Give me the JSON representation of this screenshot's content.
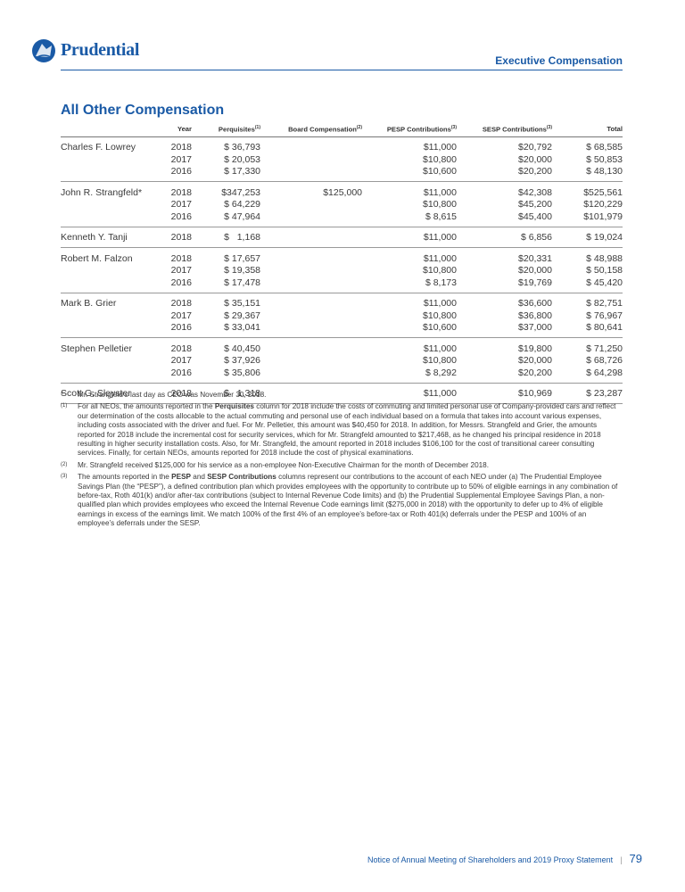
{
  "header": {
    "logo": "Prudential",
    "section": "Executive Compensation"
  },
  "title": "All Other Compensation",
  "table": {
    "columns": [
      {
        "label": "Year"
      },
      {
        "label": "Perquisites",
        "note": "(1)"
      },
      {
        "label": "Board Compensation",
        "note": "(2)"
      },
      {
        "label": "PESP Contributions",
        "note": "(3)"
      },
      {
        "label": "SESP Contributions",
        "note": "(3)"
      },
      {
        "label": "Total"
      }
    ],
    "groups": [
      {
        "name": "Charles F. Lowrey",
        "rows": [
          [
            "2018",
            "$ 36,793",
            null,
            "$11,000",
            "$20,792",
            "$ 68,585"
          ],
          [
            "2017",
            "$ 20,053",
            null,
            "$10,800",
            "$20,000",
            "$ 50,853"
          ],
          [
            "2016",
            "$ 17,330",
            null,
            "$10,600",
            "$20,200",
            "$ 48,130"
          ]
        ]
      },
      {
        "name": "John R. Strangfeld*",
        "rows": [
          [
            "2018",
            "$347,253",
            "$125,000",
            "$11,000",
            "$42,308",
            "$525,561"
          ],
          [
            "2017",
            "$ 64,229",
            null,
            "$10,800",
            "$45,200",
            "$120,229"
          ],
          [
            "2016",
            "$ 47,964",
            null,
            "$ 8,615",
            "$45,400",
            "$101,979"
          ]
        ]
      },
      {
        "name": "Kenneth Y. Tanji",
        "rows": [
          [
            "2018",
            "$   1,168",
            null,
            "$11,000",
            "$ 6,856",
            "$ 19,024"
          ]
        ]
      },
      {
        "name": "Robert M. Falzon",
        "rows": [
          [
            "2018",
            "$ 17,657",
            null,
            "$11,000",
            "$20,331",
            "$ 48,988"
          ],
          [
            "2017",
            "$ 19,358",
            null,
            "$10,800",
            "$20,000",
            "$ 50,158"
          ],
          [
            "2016",
            "$ 17,478",
            null,
            "$ 8,173",
            "$19,769",
            "$ 45,420"
          ]
        ]
      },
      {
        "name": "Mark B. Grier",
        "rows": [
          [
            "2018",
            "$ 35,151",
            null,
            "$11,000",
            "$36,600",
            "$ 82,751"
          ],
          [
            "2017",
            "$ 29,367",
            null,
            "$10,800",
            "$36,800",
            "$ 76,967"
          ],
          [
            "2016",
            "$ 33,041",
            null,
            "$10,600",
            "$37,000",
            "$ 80,641"
          ]
        ]
      },
      {
        "name": "Stephen Pelletier",
        "rows": [
          [
            "2018",
            "$ 40,450",
            null,
            "$11,000",
            "$19,800",
            "$ 71,250"
          ],
          [
            "2017",
            "$ 37,926",
            null,
            "$10,800",
            "$20,000",
            "$ 68,726"
          ],
          [
            "2016",
            "$ 35,806",
            null,
            "$ 8,292",
            "$20,200",
            "$ 64,298"
          ]
        ]
      },
      {
        "name": "Scott G. Sleyster",
        "rows": [
          [
            "2018",
            "$   1,318",
            null,
            "$11,000",
            "$10,969",
            "$ 23,287"
          ]
        ]
      }
    ]
  },
  "footnotes": [
    {
      "mark": "*",
      "parts": [
        {
          "text": "Mr. Strangfeld’s last day as CEO was November 30, 2018."
        }
      ]
    },
    {
      "mark": "(1)",
      "parts": [
        {
          "text": "For all NEOs, the amounts reported in the "
        },
        {
          "text": "Perquisites",
          "bold": true
        },
        {
          "text": " column for 2018 include the costs of commuting and limited personal use of Company-provided cars and reflect our determination of the costs allocable to the actual commuting and personal use of each individual based on a formula that takes into account various expenses, including costs associated with the driver and fuel. For Mr. Pelletier, this amount was $40,450 for 2018. In addition, for Messrs. Strangfeld and Grier, the amounts reported for 2018 include the incremental cost for security services, which for Mr. Strangfeld amounted to $217,468, as he changed his principal residence in 2018 resulting in higher security installation costs. Also, for Mr. Strangfeld, the amount reported in 2018 includes $106,100 for the cost of transitional career consulting services. Finally, for certain NEOs, amounts reported for 2018 include the cost of physical examinations."
        }
      ]
    },
    {
      "mark": "(2)",
      "parts": [
        {
          "text": "Mr. Strangfeld received $125,000 for his service as a non-employee Non-Executive Chairman for the month of December 2018."
        }
      ]
    },
    {
      "mark": "(3)",
      "parts": [
        {
          "text": "The amounts reported in the "
        },
        {
          "text": "PESP",
          "bold": true
        },
        {
          "text": " and "
        },
        {
          "text": "SESP Contributions",
          "bold": true
        },
        {
          "text": " columns represent our contributions to the account of each NEO under (a) The Prudential Employee Savings Plan (the “PESP”), a defined contribution plan which provides employees with the opportunity to contribute up to 50% of eligible earnings in any combination of before-tax, Roth 401(k) and/or after-tax contributions (subject to Internal Revenue Code limits) and (b) the Prudential Supplemental Employee Savings Plan, a non-qualified plan which provides employees who exceed the Internal Revenue Code earnings limit ($275,000 in 2018) with the opportunity to defer up to 4% of eligible earnings in excess of the earnings limit. We match 100% of the first 4% of an employee’s before-tax or Roth 401(k) deferrals under the PESP and 100% of an employee’s deferrals under the SESP."
        }
      ]
    }
  ],
  "footer": {
    "text": "Notice of Annual Meeting of Shareholders and 2019 Proxy Statement",
    "page": "79"
  }
}
